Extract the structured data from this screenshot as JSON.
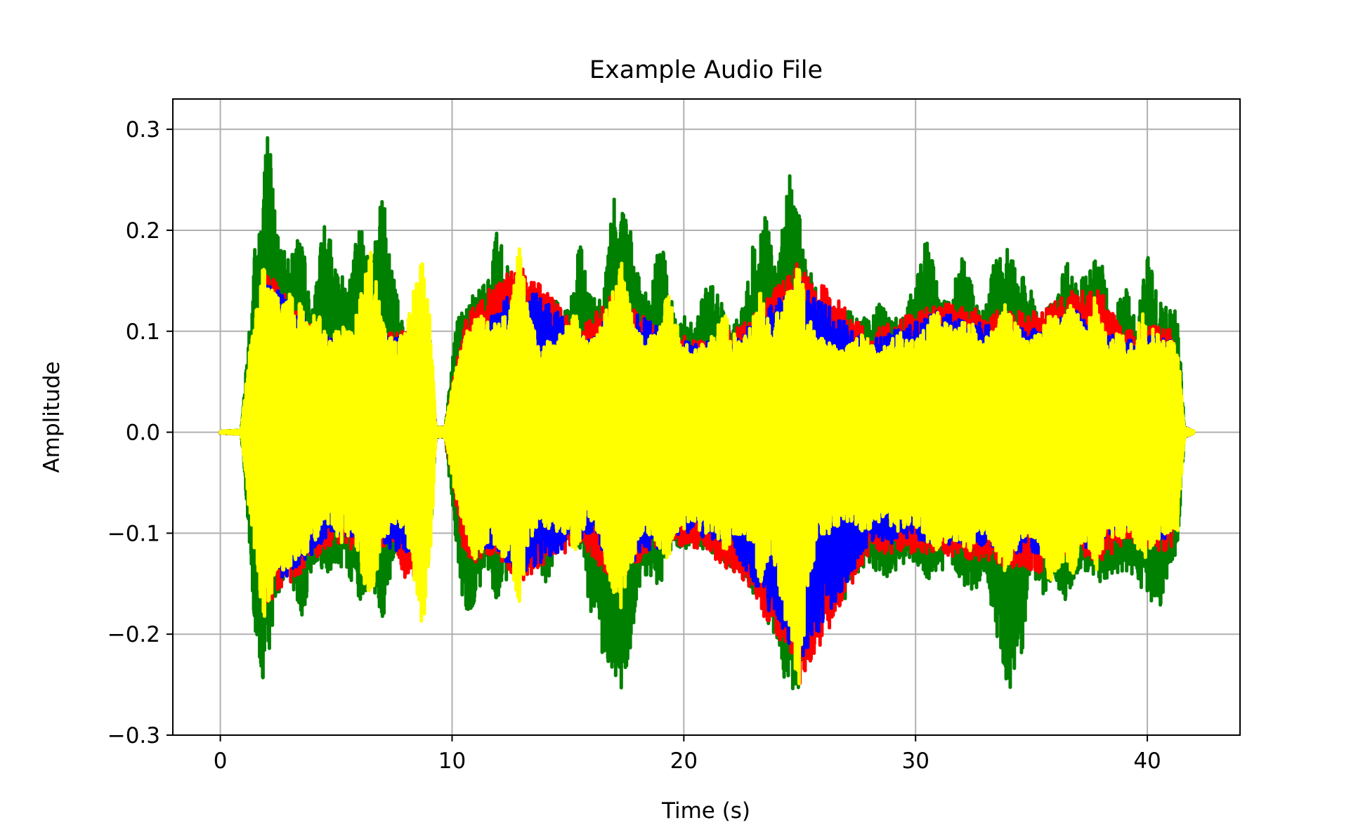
{
  "chart_data": {
    "type": "line",
    "title": "Example Audio File",
    "xlabel": "Time (s)",
    "ylabel": "Amplitude",
    "xlim": [
      -2.05,
      44.0
    ],
    "ylim": [
      -0.3,
      0.33
    ],
    "xticks": [
      0,
      10,
      20,
      30,
      40
    ],
    "xtick_labels": [
      "0",
      "10",
      "20",
      "30",
      "40"
    ],
    "yticks": [
      -0.3,
      -0.2,
      -0.1,
      0.0,
      0.1,
      0.2,
      0.3
    ],
    "ytick_labels": [
      "−0.3",
      "−0.2",
      "−0.1",
      "0.0",
      "0.1",
      "0.2",
      "0.3"
    ],
    "grid": true,
    "legend": "none",
    "duration": 42.0,
    "series": [
      {
        "color": "#008000",
        "envelope": {
          "t": [
            0,
            0.9,
            1.2,
            1.5,
            1.8,
            2.0,
            2.2,
            2.5,
            3.0,
            3.5,
            4.0,
            4.5,
            5.0,
            5.5,
            6.0,
            6.5,
            7.0,
            7.5,
            8.0,
            8.5,
            9.0,
            9.3,
            9.7,
            10.2,
            10.6,
            11.0,
            11.5,
            12.0,
            12.5,
            13.0,
            13.5,
            14.0,
            14.5,
            15.0,
            15.5,
            16.0,
            16.5,
            17.0,
            17.3,
            17.7,
            18.0,
            18.5,
            19.0,
            19.5,
            20.0,
            20.5,
            21.0,
            21.5,
            22.0,
            22.5,
            23.0,
            23.5,
            24.0,
            24.5,
            24.9,
            25.2,
            25.5,
            26.0,
            26.5,
            27.0,
            27.5,
            28.0,
            28.5,
            29.0,
            29.5,
            30.0,
            30.5,
            31.0,
            31.5,
            32.0,
            32.5,
            33.0,
            33.5,
            34.0,
            34.5,
            35.0,
            35.5,
            36.0,
            36.5,
            37.0,
            37.5,
            38.0,
            38.5,
            39.0,
            39.5,
            40.0,
            40.5,
            41.0,
            41.3,
            41.6,
            42.0
          ],
          "pos": [
            0.001,
            0.002,
            0.09,
            0.19,
            0.22,
            0.3,
            0.27,
            0.19,
            0.17,
            0.2,
            0.12,
            0.22,
            0.16,
            0.15,
            0.21,
            0.16,
            0.24,
            0.15,
            0.09,
            0.14,
            0.11,
            0.005,
            0.005,
            0.11,
            0.13,
            0.14,
            0.15,
            0.21,
            0.16,
            0.11,
            0.12,
            0.11,
            0.13,
            0.12,
            0.19,
            0.14,
            0.13,
            0.24,
            0.22,
            0.2,
            0.16,
            0.13,
            0.2,
            0.13,
            0.12,
            0.11,
            0.15,
            0.14,
            0.1,
            0.12,
            0.19,
            0.22,
            0.16,
            0.26,
            0.23,
            0.18,
            0.16,
            0.12,
            0.11,
            0.12,
            0.12,
            0.11,
            0.13,
            0.11,
            0.12,
            0.15,
            0.2,
            0.14,
            0.13,
            0.18,
            0.14,
            0.12,
            0.19,
            0.18,
            0.16,
            0.14,
            0.12,
            0.13,
            0.17,
            0.15,
            0.16,
            0.18,
            0.11,
            0.15,
            0.11,
            0.18,
            0.13,
            0.12,
            0.12,
            0.005,
            0.001
          ],
          "neg": [
            -0.001,
            -0.002,
            -0.09,
            -0.2,
            -0.26,
            -0.23,
            -0.21,
            -0.16,
            -0.14,
            -0.19,
            -0.13,
            -0.15,
            -0.13,
            -0.14,
            -0.17,
            -0.15,
            -0.19,
            -0.12,
            -0.1,
            -0.14,
            -0.14,
            -0.005,
            -0.005,
            -0.12,
            -0.19,
            -0.17,
            -0.13,
            -0.18,
            -0.14,
            -0.12,
            -0.12,
            -0.15,
            -0.13,
            -0.11,
            -0.12,
            -0.18,
            -0.22,
            -0.24,
            -0.26,
            -0.22,
            -0.16,
            -0.14,
            -0.16,
            -0.11,
            -0.12,
            -0.11,
            -0.12,
            -0.12,
            -0.14,
            -0.14,
            -0.16,
            -0.19,
            -0.21,
            -0.26,
            -0.27,
            -0.22,
            -0.19,
            -0.15,
            -0.16,
            -0.17,
            -0.14,
            -0.13,
            -0.15,
            -0.14,
            -0.13,
            -0.13,
            -0.15,
            -0.14,
            -0.13,
            -0.15,
            -0.16,
            -0.14,
            -0.2,
            -0.26,
            -0.24,
            -0.14,
            -0.16,
            -0.15,
            -0.17,
            -0.14,
            -0.14,
            -0.15,
            -0.14,
            -0.14,
            -0.15,
            -0.16,
            -0.18,
            -0.13,
            -0.12,
            -0.005,
            -0.001
          ]
        }
      },
      {
        "color": "#ff0000",
        "envelope": {
          "t": [
            0,
            1.0,
            2.0,
            4.5,
            5.2,
            6.0,
            7.5,
            8.0,
            9.0,
            9.3,
            9.7,
            10.5,
            11.0,
            11.5,
            13.0,
            15.5,
            17.0,
            19.0,
            21.0,
            22.7,
            25.0,
            28.0,
            31.0,
            33.0,
            35.5,
            36.5,
            38.0,
            39.0,
            41.0,
            41.6,
            42.0
          ],
          "pos": [
            0.001,
            0.002,
            0.16,
            0.09,
            0.1,
            0.09,
            0.1,
            0.1,
            0.11,
            0.005,
            0.005,
            0.11,
            0.13,
            0.14,
            0.17,
            0.1,
            0.14,
            0.1,
            0.09,
            0.11,
            0.17,
            0.1,
            0.13,
            0.12,
            0.12,
            0.14,
            0.14,
            0.1,
            0.11,
            0.005,
            0.001
          ],
          "neg": [
            -0.001,
            -0.002,
            -0.17,
            -0.12,
            -0.11,
            -0.12,
            -0.11,
            -0.15,
            -0.13,
            -0.005,
            -0.005,
            -0.12,
            -0.13,
            -0.12,
            -0.15,
            -0.11,
            -0.15,
            -0.11,
            -0.12,
            -0.15,
            -0.25,
            -0.12,
            -0.12,
            -0.13,
            -0.14,
            -0.12,
            -0.13,
            -0.11,
            -0.12,
            -0.005,
            -0.001
          ]
        }
      },
      {
        "color": "#0000ff",
        "envelope": {
          "t": [
            0,
            1.0,
            2.0,
            5.0,
            8.0,
            9.0,
            9.3,
            9.7,
            11.0,
            13.0,
            16.0,
            17.0,
            20.0,
            22.0,
            25.0,
            28.0,
            31.0,
            34.0,
            37.0,
            39.0,
            41.0,
            41.6,
            42.0
          ],
          "pos": [
            0.001,
            0.002,
            0.15,
            0.09,
            0.1,
            0.1,
            0.005,
            0.005,
            0.1,
            0.15,
            0.09,
            0.13,
            0.09,
            0.09,
            0.15,
            0.09,
            0.12,
            0.1,
            0.12,
            0.09,
            0.1,
            0.005,
            0.001
          ],
          "neg": [
            -0.001,
            -0.002,
            -0.16,
            -0.1,
            -0.12,
            -0.12,
            -0.005,
            -0.005,
            -0.11,
            -0.14,
            -0.1,
            -0.14,
            -0.1,
            -0.11,
            -0.23,
            -0.11,
            -0.11,
            -0.12,
            -0.12,
            -0.1,
            -0.11,
            -0.005,
            -0.001
          ]
        }
      },
      {
        "color": "#ffff00",
        "envelope": {
          "t": [
            0,
            0.9,
            1.2,
            1.6,
            1.8,
            2.0,
            2.3,
            2.7,
            3.2,
            3.7,
            4.2,
            4.7,
            5.2,
            5.7,
            6.2,
            6.5,
            7.0,
            7.5,
            8.0,
            8.5,
            8.8,
            9.1,
            9.3,
            9.7,
            10.2,
            10.6,
            11.0,
            11.5,
            12.0,
            12.5,
            12.9,
            13.3,
            13.8,
            14.3,
            14.8,
            15.3,
            15.8,
            16.3,
            16.8,
            17.3,
            17.8,
            18.3,
            18.8,
            19.3,
            19.8,
            20.3,
            20.8,
            21.3,
            21.8,
            22.3,
            22.8,
            23.3,
            23.8,
            24.3,
            24.7,
            25.0,
            25.3,
            25.8,
            26.3,
            26.8,
            27.3,
            27.8,
            28.3,
            28.8,
            29.3,
            29.8,
            30.3,
            30.8,
            31.3,
            31.8,
            32.3,
            32.8,
            33.3,
            33.8,
            34.3,
            34.8,
            35.3,
            35.8,
            36.3,
            36.8,
            37.3,
            37.8,
            38.3,
            38.8,
            39.3,
            39.8,
            40.3,
            40.8,
            41.3,
            41.6,
            42.0
          ],
          "pos": [
            0.001,
            0.002,
            0.07,
            0.13,
            0.17,
            0.16,
            0.14,
            0.13,
            0.15,
            0.11,
            0.12,
            0.09,
            0.11,
            0.1,
            0.15,
            0.18,
            0.11,
            0.09,
            0.1,
            0.16,
            0.17,
            0.1,
            0.005,
            0.005,
            0.07,
            0.1,
            0.12,
            0.11,
            0.11,
            0.13,
            0.19,
            0.12,
            0.09,
            0.09,
            0.1,
            0.12,
            0.09,
            0.1,
            0.13,
            0.17,
            0.11,
            0.09,
            0.1,
            0.14,
            0.1,
            0.08,
            0.09,
            0.1,
            0.12,
            0.09,
            0.1,
            0.14,
            0.11,
            0.13,
            0.16,
            0.17,
            0.12,
            0.1,
            0.09,
            0.08,
            0.09,
            0.1,
            0.08,
            0.09,
            0.1,
            0.09,
            0.1,
            0.13,
            0.11,
            0.1,
            0.12,
            0.09,
            0.1,
            0.13,
            0.11,
            0.09,
            0.1,
            0.12,
            0.11,
            0.13,
            0.1,
            0.14,
            0.09,
            0.1,
            0.09,
            0.12,
            0.1,
            0.09,
            0.09,
            0.005,
            0.001
          ],
          "neg": [
            -0.001,
            -0.002,
            -0.07,
            -0.14,
            -0.18,
            -0.19,
            -0.15,
            -0.14,
            -0.13,
            -0.12,
            -0.11,
            -0.09,
            -0.11,
            -0.1,
            -0.15,
            -0.17,
            -0.11,
            -0.09,
            -0.1,
            -0.17,
            -0.2,
            -0.12,
            -0.005,
            -0.005,
            -0.07,
            -0.1,
            -0.13,
            -0.11,
            -0.12,
            -0.13,
            -0.17,
            -0.11,
            -0.09,
            -0.1,
            -0.1,
            -0.12,
            -0.09,
            -0.1,
            -0.15,
            -0.18,
            -0.13,
            -0.1,
            -0.11,
            -0.13,
            -0.1,
            -0.09,
            -0.1,
            -0.1,
            -0.12,
            -0.1,
            -0.11,
            -0.15,
            -0.12,
            -0.18,
            -0.22,
            -0.27,
            -0.16,
            -0.11,
            -0.1,
            -0.09,
            -0.09,
            -0.1,
            -0.09,
            -0.09,
            -0.1,
            -0.09,
            -0.1,
            -0.12,
            -0.11,
            -0.11,
            -0.12,
            -0.1,
            -0.11,
            -0.14,
            -0.12,
            -0.1,
            -0.11,
            -0.15,
            -0.13,
            -0.14,
            -0.11,
            -0.14,
            -0.1,
            -0.11,
            -0.1,
            -0.13,
            -0.11,
            -0.1,
            -0.1,
            -0.005,
            -0.001
          ]
        }
      }
    ]
  }
}
